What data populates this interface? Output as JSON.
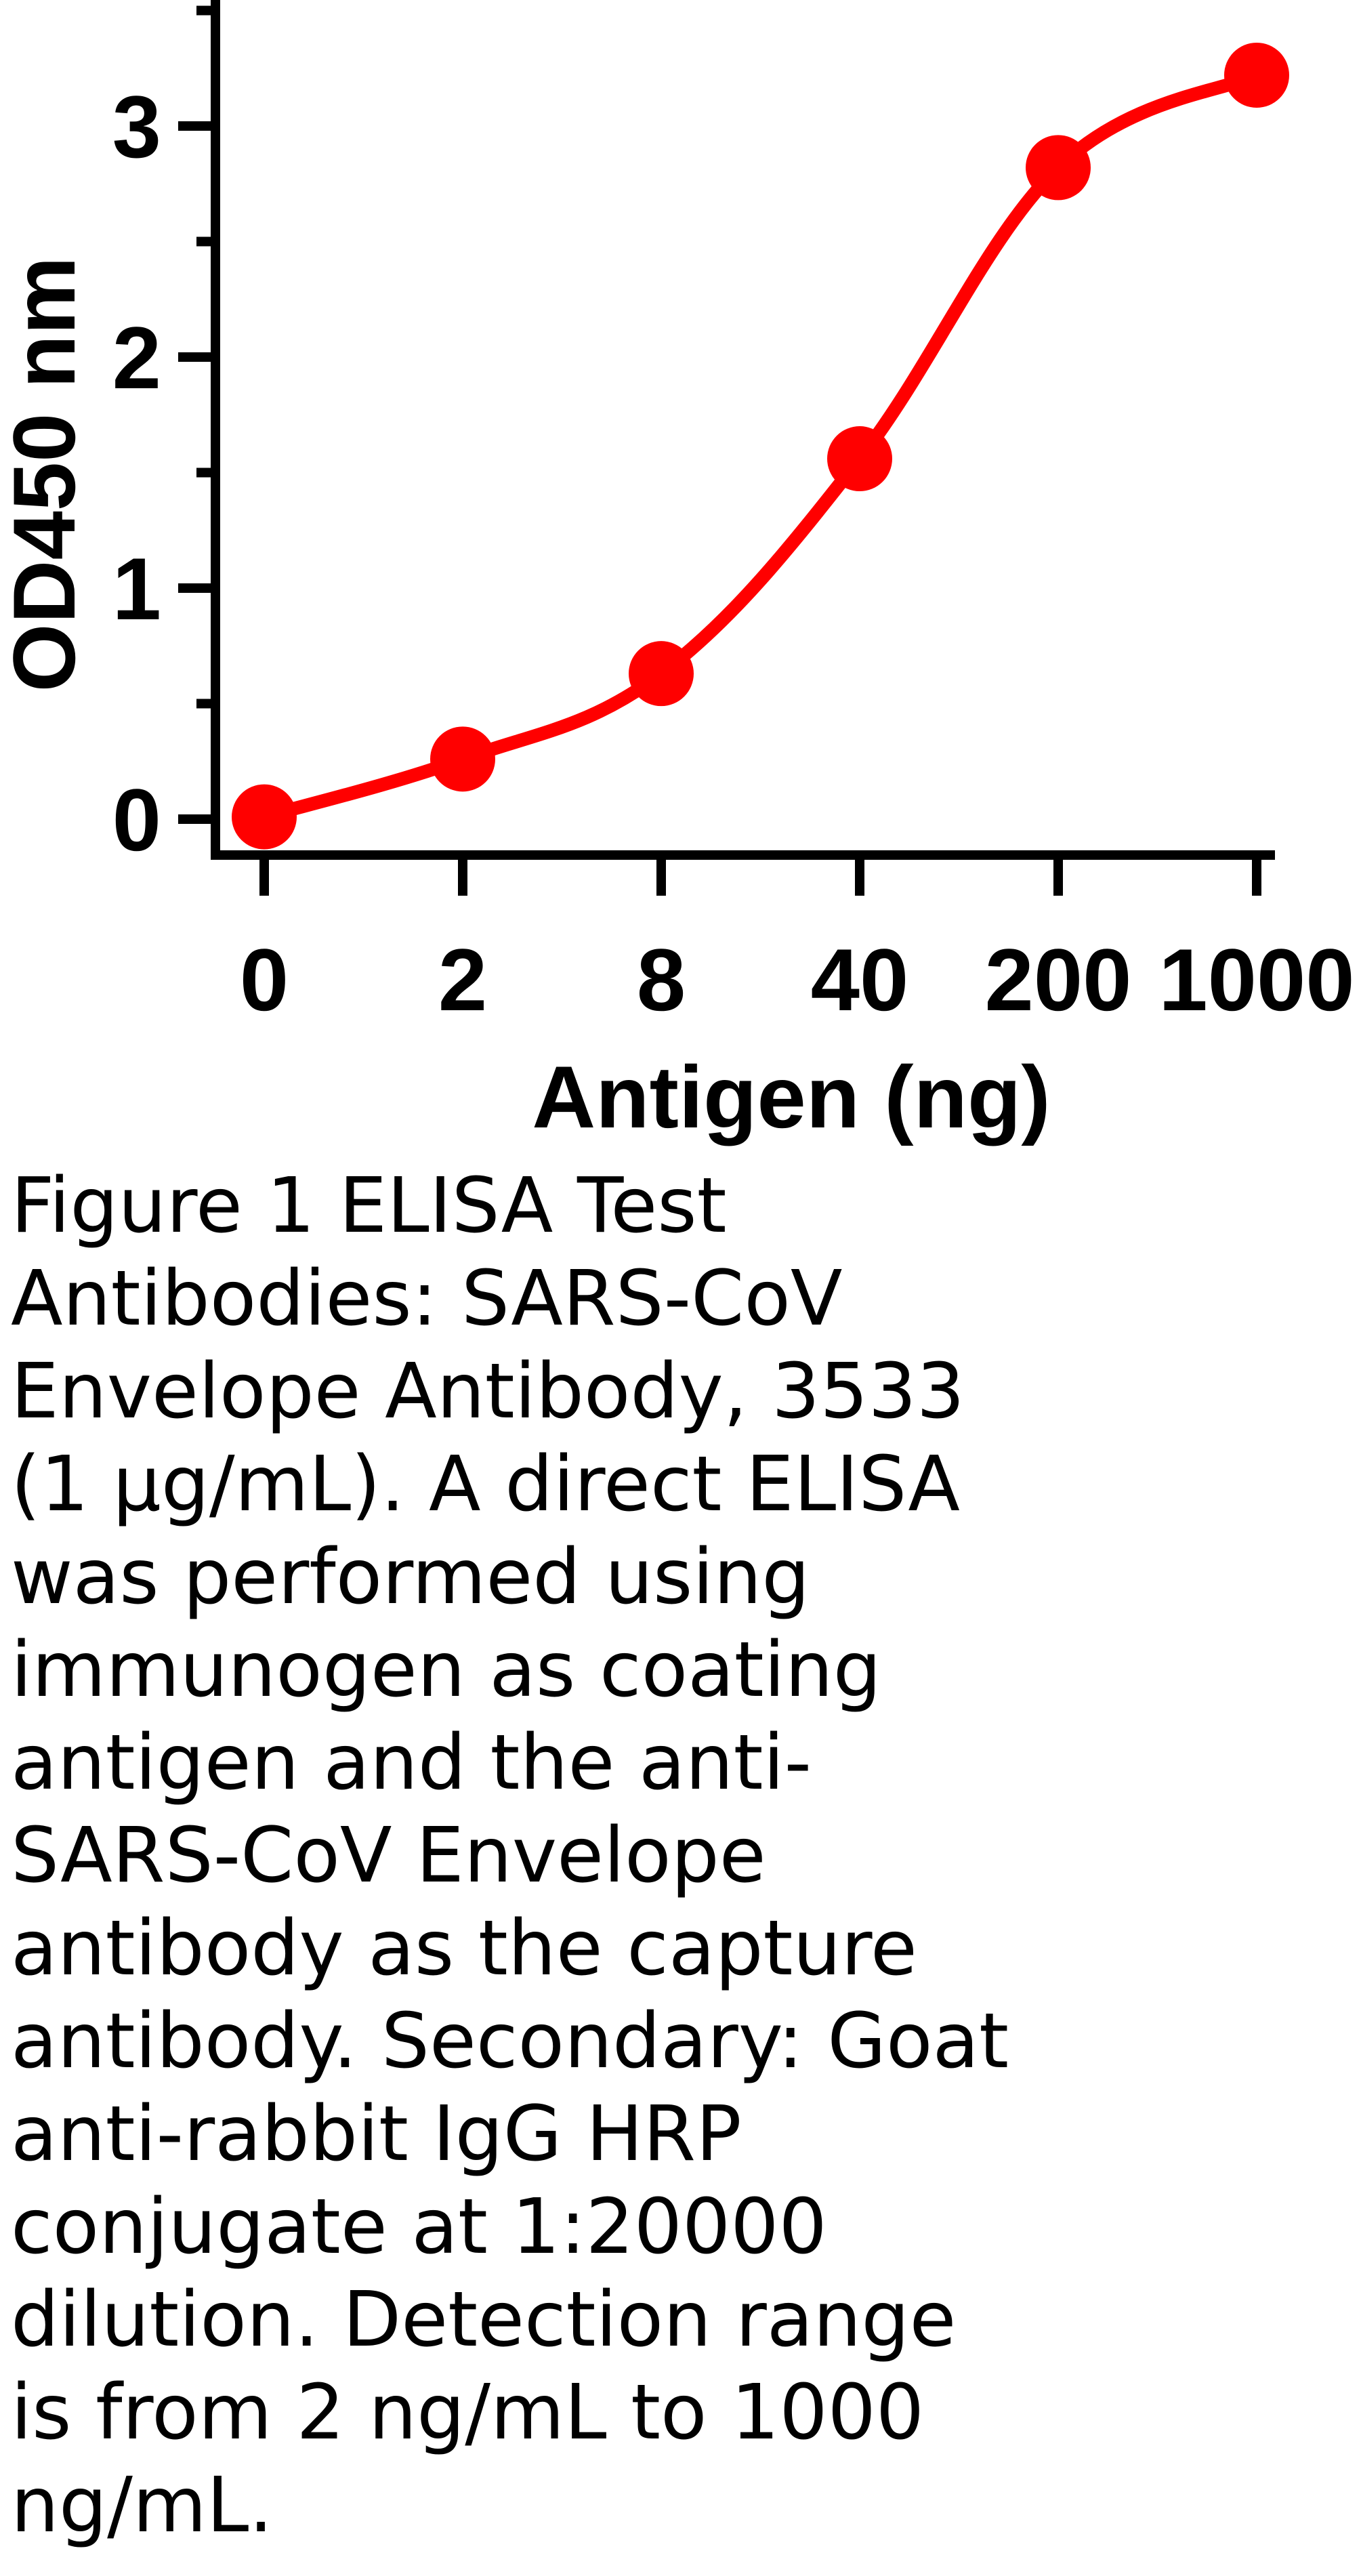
{
  "chart_data": {
    "type": "line",
    "title": "",
    "xlabel": "Antigen (ng)",
    "ylabel": "OD450 nm",
    "categories": [
      "0",
      "2",
      "8",
      "40",
      "200",
      "1000"
    ],
    "series": [
      {
        "values": [
          0.01,
          0.26,
          0.63,
          1.56,
          2.82,
          3.22
        ],
        "color": "#ff0000",
        "marker": "circle"
      }
    ],
    "ylim": [
      -0.15,
      3.5
    ],
    "yticks": [
      0,
      1,
      2,
      3
    ],
    "yticklabels": [
      "0",
      "1",
      "2",
      "3"
    ],
    "grid": false,
    "legend": "none"
  },
  "caption": {
    "text": "Figure 1 ELISA Test\nAntibodies: SARS-CoV\nEnvelope Antibody, 3533\n(1 μg/mL). A direct ELISA\nwas performed using\nimmunogen as coating\nantigen and the anti-\nSARS-CoV Envelope\nantibody as the capture\nantibody. Secondary: Goat\nanti-rabbit IgG HRP\nconjugate at 1:20000\ndilution. Detection range\nis from 2 ng/mL to 1000\nng/mL."
  }
}
